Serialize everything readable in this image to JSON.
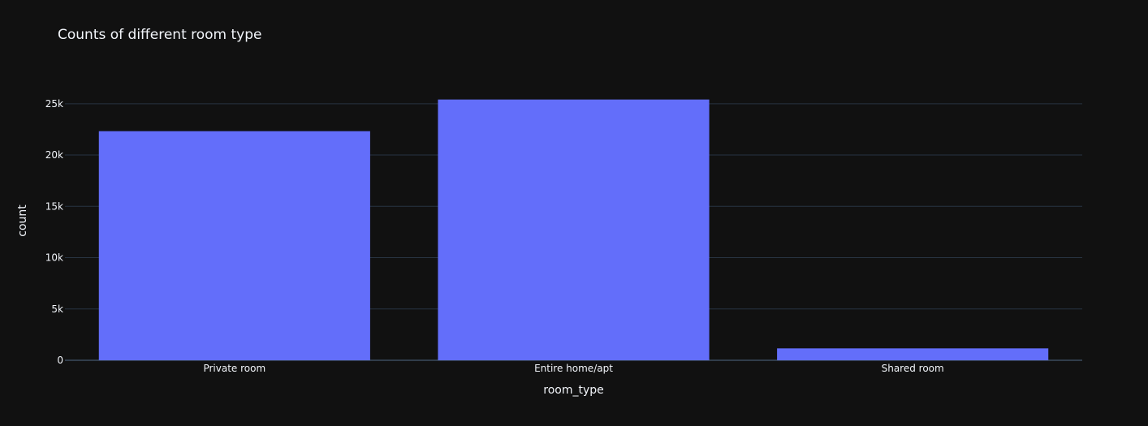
{
  "chart_data": {
    "type": "bar",
    "title": "Counts of different room type",
    "xlabel": "room_type",
    "ylabel": "count",
    "categories": [
      "Private room",
      "Entire home/apt",
      "Shared room"
    ],
    "values": [
      22326,
      25409,
      1160
    ],
    "ylim": [
      0,
      27200
    ],
    "yticks": [
      0,
      5000,
      10000,
      15000,
      20000,
      25000
    ],
    "ytick_labels": [
      "0",
      "5k",
      "10k",
      "15k",
      "20k",
      "25k"
    ],
    "grid": true,
    "bar_color": "#636efa",
    "background_color": "#111111",
    "grid_color": "#283442",
    "text_color": "#f2f5fa"
  }
}
